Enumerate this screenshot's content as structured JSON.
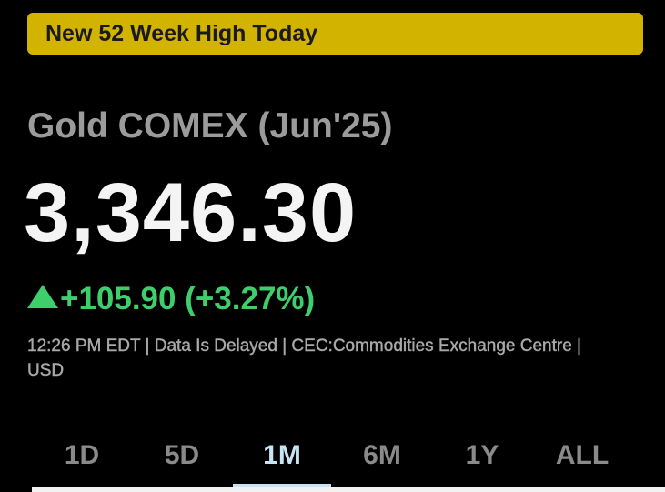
{
  "banner": {
    "text": "New 52 Week High Today"
  },
  "quote": {
    "name": "Gold COMEX (Jun'25)",
    "price": "3,346.30",
    "change": "+105.90 (+3.27%)",
    "meta": "12:26 PM EDT | Data Is Delayed | CEC:Commodities Exchange Centre | USD"
  },
  "tabs": {
    "items": [
      "1D",
      "5D",
      "1M",
      "6M",
      "1Y",
      "ALL"
    ],
    "active": "1M"
  }
}
